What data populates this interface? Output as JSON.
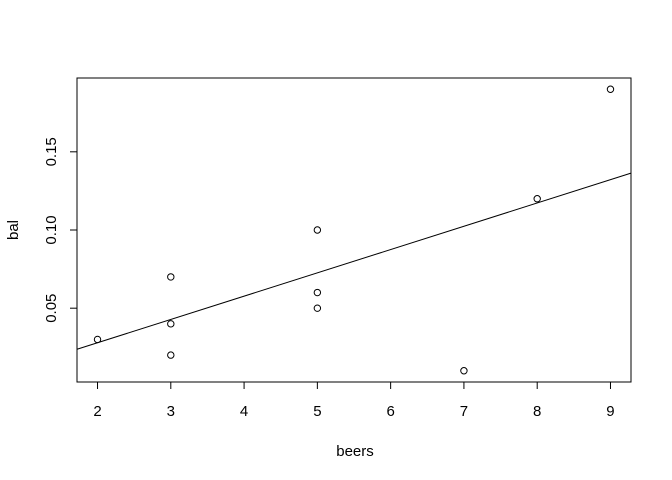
{
  "chart_data": {
    "type": "scatter",
    "title": "",
    "xlabel": "beers",
    "ylabel": "bal",
    "xlim": [
      1.72,
      9.28
    ],
    "ylim": [
      0.0028,
      0.1972
    ],
    "xticks": [
      2,
      3,
      4,
      5,
      6,
      7,
      8,
      9
    ],
    "yticks": [
      0.05,
      0.1,
      0.15
    ],
    "ytick_labels": [
      "0.05",
      "0.10",
      "0.15"
    ],
    "points": [
      {
        "x": 2,
        "y": 0.03
      },
      {
        "x": 3,
        "y": 0.07
      },
      {
        "x": 3,
        "y": 0.04
      },
      {
        "x": 3,
        "y": 0.02
      },
      {
        "x": 5,
        "y": 0.1
      },
      {
        "x": 5,
        "y": 0.06
      },
      {
        "x": 5,
        "y": 0.05
      },
      {
        "x": 7,
        "y": 0.01
      },
      {
        "x": 8,
        "y": 0.12
      },
      {
        "x": 9,
        "y": 0.19
      }
    ],
    "regression_line": {
      "intercept": -0.0019,
      "slope": 0.0149
    },
    "grid": false,
    "colors": {
      "points": "#000000",
      "line": "#000000",
      "frame": "#000000"
    }
  }
}
